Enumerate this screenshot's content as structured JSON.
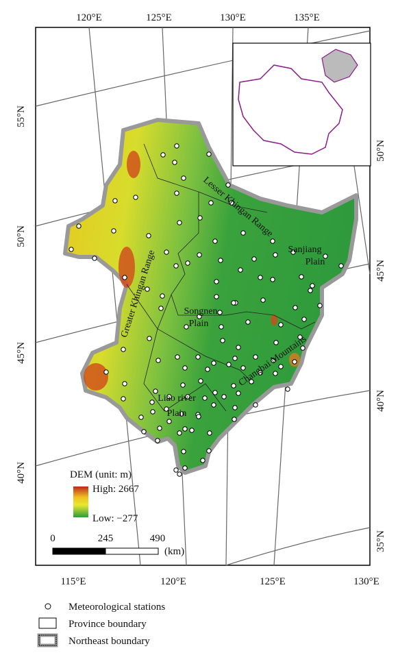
{
  "top_labels": [
    "120°E",
    "125°E",
    "130°E",
    "135°E"
  ],
  "left_labels": [
    "55°N",
    "50°N",
    "45°N",
    "40°N"
  ],
  "right_labels": [
    "50°N",
    "45°N",
    "40°N",
    "35°N"
  ],
  "bottom_labels": [
    "115°E",
    "120°E",
    "125°E",
    "130°E"
  ],
  "regions": [
    {
      "lines": [
        "Greater Khingan Range"
      ]
    },
    {
      "lines": [
        "Lesser Khingan Range"
      ]
    },
    {
      "lines": [
        "Sanjiang",
        "Plain"
      ]
    },
    {
      "lines": [
        "Songnen",
        "Plain"
      ]
    },
    {
      "lines": [
        "Liao river",
        "Plain"
      ]
    },
    {
      "lines": [
        "Changbai Mountains"
      ]
    }
  ],
  "dem_legend": {
    "title": "DEM (unit: m)",
    "high": "High: 2667",
    "low": "Low: −277"
  },
  "scale": {
    "ticks": [
      "0",
      "245",
      "490"
    ],
    "unit": "(km)"
  },
  "legend": [
    "Meteorological stations",
    "Province boundary",
    "Northeast boundary"
  ]
}
